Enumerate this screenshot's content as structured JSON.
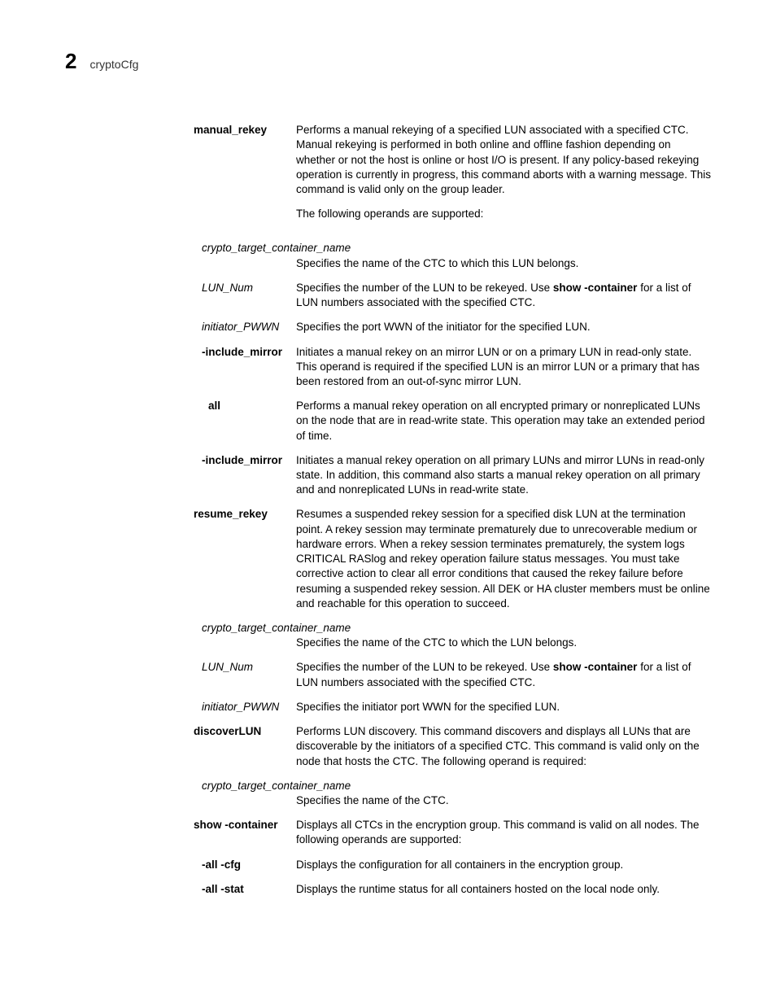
{
  "header": {
    "chapter_num": "2",
    "chapter_title": "cryptoCfg"
  },
  "entries": [
    {
      "term": "manual_rekey",
      "term_style": "bold",
      "indent": 0,
      "desc_paras": [
        "Performs a manual rekeying of a specified LUN associated with a specified CTC. Manual rekeying is performed in both online and offline fashion depending on whether or not the host is online or host I/O is present. If any policy-based rekeying operation is currently in progress, this command aborts with a warning message. This command is valid only on the group leader.",
        "The following operands are supported:"
      ]
    },
    {
      "full_line_term": "crypto_target_container_name",
      "term_style": "italic",
      "indent": 1,
      "desc_paras": [
        "Specifies the name of the CTC to which this LUN belongs."
      ]
    },
    {
      "term": "LUN_Num",
      "term_style": "italic",
      "indent": 1,
      "desc_inline": [
        {
          "text": "Specifies the number of the LUN to be rekeyed. Use "
        },
        {
          "text": "show -container",
          "bold": true
        },
        {
          "text": " for a list of LUN numbers associated with the specified CTC."
        }
      ]
    },
    {
      "term": "initiator_PWWN",
      "term_style": "italic",
      "indent": 1,
      "desc_paras": [
        "Specifies the port WWN of the initiator for the specified LUN."
      ]
    },
    {
      "term": "-include_mirror",
      "term_style": "bold",
      "indent": 1,
      "desc_paras": [
        "Initiates a manual rekey on an mirror LUN or on a primary LUN in read-only state. This operand is required if the specified LUN is an mirror LUN or a primary that has been restored from an out-of-sync mirror LUN."
      ]
    },
    {
      "term": "all",
      "term_style": "bold",
      "indent": 2,
      "desc_paras": [
        "Performs a manual rekey operation on all encrypted primary or nonreplicated LUNs on the node that are in read-write state. This operation may take an extended period of time."
      ]
    },
    {
      "term": "-include_mirror",
      "term_style": "bold",
      "indent": 1,
      "desc_paras": [
        "Initiates a manual rekey operation on all primary LUNs and mirror LUNs in read-only state. In addition, this command also starts a manual rekey operation on all primary and and nonreplicated LUNs in read-write state."
      ]
    },
    {
      "term": "resume_rekey",
      "term_style": "bold",
      "indent": 0,
      "desc_paras": [
        "Resumes a suspended rekey session for a specified disk LUN at the termination point. A rekey session may terminate prematurely due to unrecoverable medium or hardware errors. When a rekey session terminates prematurely, the system logs CRITICAL RASlog and rekey operation failure status messages. You must take corrective action to clear all error conditions that caused the rekey failure before resuming a suspended rekey session. All DEK or HA cluster members must be online and reachable for this operation to succeed."
      ]
    },
    {
      "full_line_term": "crypto_target_container_name",
      "term_style": "italic",
      "indent": 1,
      "desc_paras": [
        "Specifies the name of the CTC to which the LUN belongs."
      ]
    },
    {
      "term": "LUN_Num",
      "term_style": "italic",
      "indent": 1,
      "desc_inline": [
        {
          "text": "Specifies the number of the LUN to be rekeyed. Use "
        },
        {
          "text": "show -container",
          "bold": true
        },
        {
          "text": " for a list of LUN numbers associated with the specified CTC."
        }
      ]
    },
    {
      "term": "initiator_PWWN",
      "term_style": "italic",
      "indent": 1,
      "desc_paras": [
        "Specifies the initiator port WWN for the specified LUN."
      ]
    },
    {
      "term": "discoverLUN",
      "term_style": "bold",
      "indent": 0,
      "desc_paras": [
        "Performs LUN discovery. This command discovers and displays all LUNs that are discoverable by the initiators of a specified CTC. This command is valid only on the node that hosts the CTC. The following operand is required:"
      ]
    },
    {
      "full_line_term": "crypto_target_container_name",
      "term_style": "italic",
      "indent": 1,
      "desc_paras": [
        "Specifies the name of the CTC."
      ]
    },
    {
      "term": "show -container",
      "term_style": "bold",
      "indent": 0,
      "desc_paras": [
        "Displays all CTCs in the encryption group. This command is valid on all nodes. The following operands are supported:"
      ]
    },
    {
      "term": "-all -cfg",
      "term_style": "bold",
      "indent": 1,
      "desc_paras": [
        "Displays the configuration for all containers in the encryption group."
      ]
    },
    {
      "term": "-all -stat",
      "term_style": "bold",
      "indent": 1,
      "desc_paras": [
        "Displays the runtime status for all containers hosted on the local node only."
      ]
    }
  ]
}
